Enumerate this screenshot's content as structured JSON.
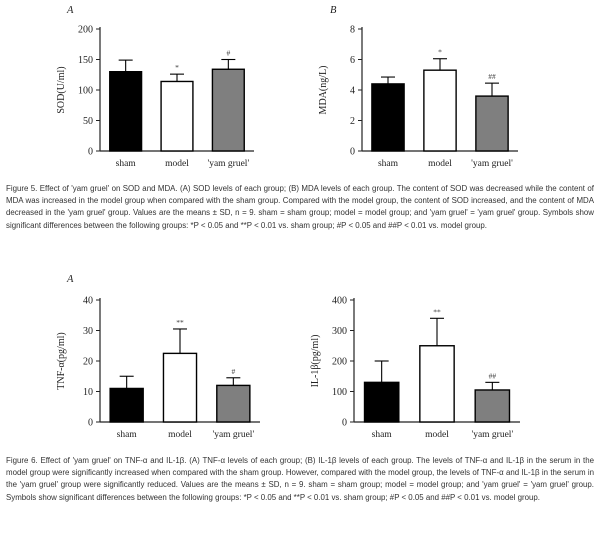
{
  "figures": [
    {
      "caption": "Figure 5.  Effect of 'yam gruel' on SOD and MDA. (A) SOD levels of each group; (B) MDA levels of each group.  The content of SOD was decreased while the content of MDA was increased in the model group when compared with the sham group.  Compared with the model group, the content of SOD increased, and the content of MDA decreased in the 'yam gruel' group. Values are the means ± SD, n = 9. sham = sham group; model = model group; and 'yam gruel' = 'yam gruel' group. Symbols show significant differences between the following groups: *P < 0.05 and **P < 0.01 vs. sham group; #P < 0.05 and ##P < 0.01 vs. model group."
    },
    {
      "caption": "Figure 6.  Effect of 'yam gruel' on TNF-α and IL-1β. (A) TNF-α levels of each group; (B) IL-1β levels of each group. The levels of TNF-α and IL-1β in the serum in the model group were significantly increased when compared with the sham group. However, compared with the model group, the levels of TNF-α and IL-1β in the serum in the 'yam gruel' group were significantly reduced. Values are the means ± SD, n = 9. sham = sham group; model = model group; and 'yam gruel' = 'yam gruel' group. Symbols show significant differences between the following groups: *P < 0.05 and **P < 0.01 vs. sham group; #P < 0.05 and ##P < 0.01 vs. model group."
    }
  ],
  "colors": {
    "sham": "#000000",
    "model": "#ffffff",
    "yam": "#7f7f7f",
    "axis": "#222222"
  },
  "chart_data": [
    {
      "type": "bar",
      "panel_label": "A",
      "ylabel": "SOD(U/ml)",
      "categories": [
        "sham",
        "model",
        "'yam gruel'"
      ],
      "values": [
        130,
        114,
        134
      ],
      "errors": [
        19,
        12,
        16
      ],
      "annotations": [
        "",
        "*",
        "#"
      ],
      "ylim": [
        0,
        200
      ],
      "yticks": [
        0,
        50,
        100,
        150,
        200
      ]
    },
    {
      "type": "bar",
      "panel_label": "B",
      "ylabel": "MDA(ng/L)",
      "categories": [
        "sham",
        "model",
        "'yam gruel'"
      ],
      "values": [
        4.4,
        5.3,
        3.6
      ],
      "errors": [
        0.45,
        0.75,
        0.85
      ],
      "annotations": [
        "",
        "*",
        "##"
      ],
      "ylim": [
        0,
        8
      ],
      "yticks": [
        0,
        2,
        4,
        6,
        8
      ]
    },
    {
      "type": "bar",
      "panel_label": "A",
      "ylabel": "TNF-α(pg/ml)",
      "categories": [
        "sham",
        "model",
        "'yam gruel'"
      ],
      "values": [
        11,
        22.5,
        12
      ],
      "errors": [
        4,
        8,
        2.5
      ],
      "annotations": [
        "",
        "**",
        "#"
      ],
      "ylim": [
        0,
        40
      ],
      "yticks": [
        0,
        10,
        20,
        30,
        40
      ]
    },
    {
      "type": "bar",
      "panel_label": "B",
      "ylabel": "IL-1β(pg/ml)",
      "categories": [
        "sham",
        "model",
        "'yam gruel'"
      ],
      "values": [
        130,
        250,
        105
      ],
      "errors": [
        70,
        90,
        25
      ],
      "annotations": [
        "",
        "**",
        "##"
      ],
      "ylim": [
        0,
        400
      ],
      "yticks": [
        0,
        100,
        200,
        300,
        400
      ]
    }
  ]
}
